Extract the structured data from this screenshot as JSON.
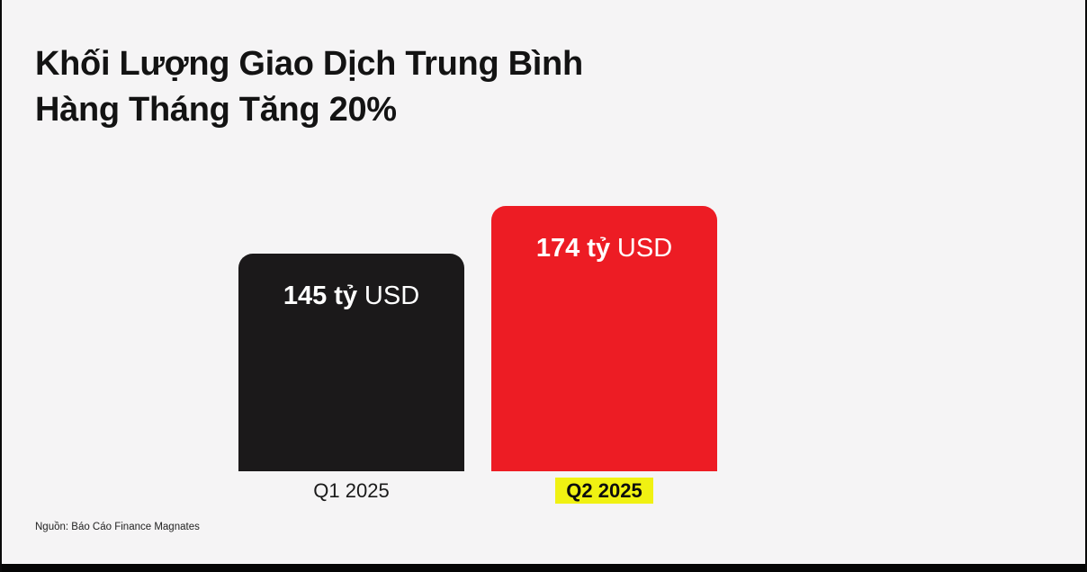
{
  "title": {
    "line1": "Khối Lượng Giao Dịch Trung Bình",
    "line2": "Hàng Tháng Tăng 20%"
  },
  "chart_data": {
    "type": "bar",
    "title": "Khối Lượng Giao Dịch Trung Bình Hàng Tháng Tăng 20%",
    "categories": [
      "Q1 2025",
      "Q2 2025"
    ],
    "values": [
      145,
      174
    ],
    "unit": "tỷ USD",
    "value_labels": [
      "145 tỷ USD",
      "174 tỷ USD"
    ],
    "series_colors": [
      "#1b191a",
      "#ed1c24"
    ],
    "highlighted_category": "Q2 2025",
    "grid": false,
    "legend": false,
    "xlabel": "",
    "ylabel": "",
    "source": "Nguồn: Báo Cáo Finance Magnates"
  },
  "bars": [
    {
      "value_bold": "145 tỷ",
      "value_suffix": "USD",
      "label": "Q1 2025",
      "color": "#1b191a",
      "highlighted": false
    },
    {
      "value_bold": "174 tỷ",
      "value_suffix": "USD",
      "label": "Q2 2025",
      "color": "#ed1c24",
      "highlighted": true
    }
  ],
  "source": "Nguồn: Báo Cáo Finance Magnates",
  "colors": {
    "background": "#f5f4f5",
    "frame": "#000000",
    "bar_dark": "#1b191a",
    "bar_red": "#ed1c24",
    "highlight_yellow": "#f0f112",
    "text": "#141414",
    "value_text": "#ffffff"
  }
}
